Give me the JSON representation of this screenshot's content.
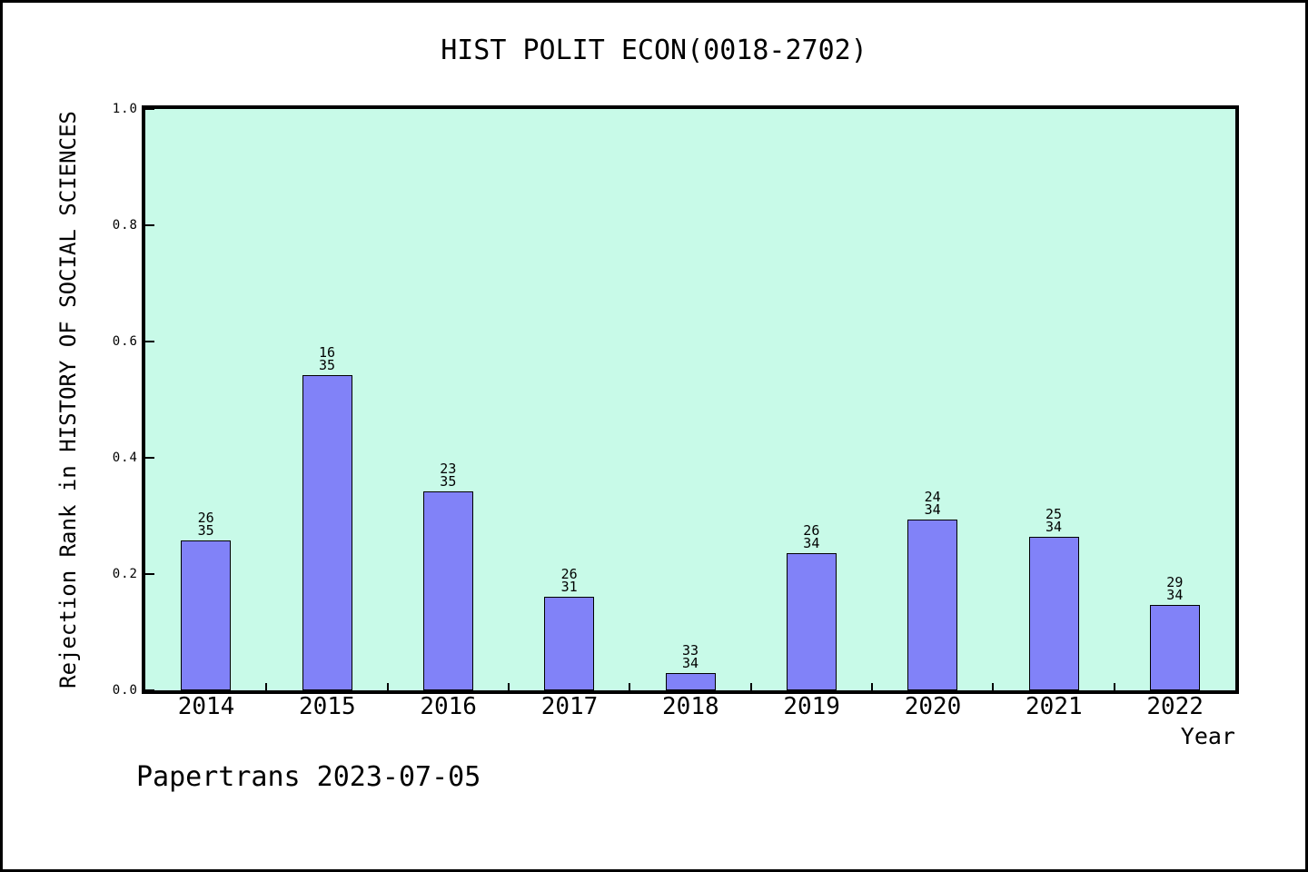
{
  "page": {
    "footer": "Papertrans 2023-07-05"
  },
  "chart_data": {
    "type": "bar",
    "title": "HIST POLIT ECON(0018-2702)",
    "xlabel": "Year",
    "ylabel": "Rejection Rank in HISTORY OF SOCIAL SCIENCES",
    "categories": [
      "2014",
      "2015",
      "2016",
      "2017",
      "2018",
      "2019",
      "2020",
      "2021",
      "2022"
    ],
    "bar_labels": [
      {
        "numerator": "26",
        "denominator": "35"
      },
      {
        "numerator": "16",
        "denominator": "35"
      },
      {
        "numerator": "23",
        "denominator": "35"
      },
      {
        "numerator": "26",
        "denominator": "31"
      },
      {
        "numerator": "33",
        "denominator": "34"
      },
      {
        "numerator": "26",
        "denominator": "34"
      },
      {
        "numerator": "24",
        "denominator": "34"
      },
      {
        "numerator": "25",
        "denominator": "34"
      },
      {
        "numerator": "29",
        "denominator": "34"
      }
    ],
    "values": [
      0.2571,
      0.5429,
      0.3429,
      0.1613,
      0.0294,
      0.2353,
      0.2941,
      0.2647,
      0.1471
    ],
    "ylim": [
      0.0,
      1.0
    ],
    "yticks": [
      "0.0",
      "0.2",
      "0.4",
      "0.6",
      "0.8",
      "1.0"
    ],
    "grid": false,
    "legend_position": "none",
    "colors": {
      "bar_fill": "#8182f8",
      "bar_border": "#000000",
      "plot_bg": "#c8fae8",
      "frame": "#000000",
      "text": "#000000"
    }
  }
}
